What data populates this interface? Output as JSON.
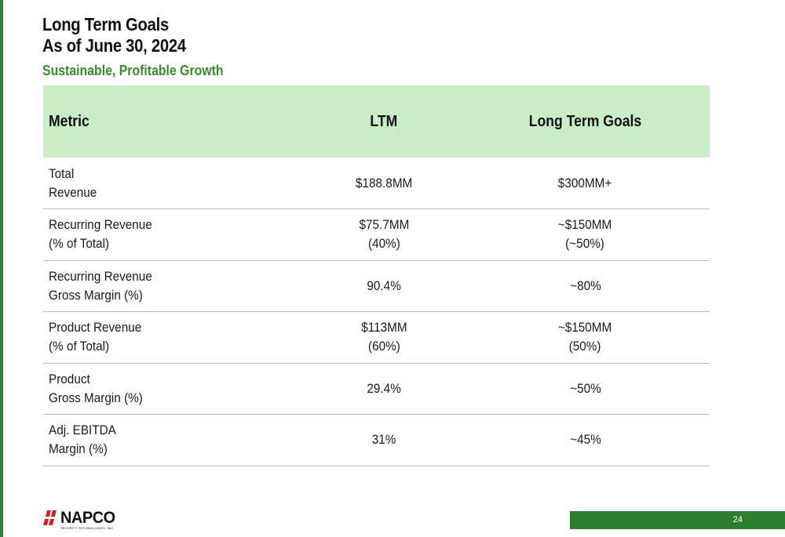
{
  "header": {
    "title_line1": "Long Term Goals",
    "title_line2": "As of June 30, 2024",
    "subtitle": "Sustainable, Profitable Growth"
  },
  "table": {
    "columns": [
      "Metric",
      "LTM",
      "Long Term Goals"
    ],
    "rows": [
      {
        "metric": [
          "Total",
          "Revenue"
        ],
        "ltm": [
          "$188.8MM"
        ],
        "goal": [
          "$300MM+"
        ]
      },
      {
        "metric": [
          "Recurring Revenue",
          "(% of Total)"
        ],
        "ltm": [
          "$75.7MM",
          "(40%)"
        ],
        "goal": [
          "~$150MM",
          "(~50%)"
        ]
      },
      {
        "metric": [
          "Recurring Revenue",
          "Gross Margin (%)"
        ],
        "ltm": [
          "90.4%"
        ],
        "goal": [
          "~80%"
        ]
      },
      {
        "metric": [
          "Product Revenue",
          "(% of Total)"
        ],
        "ltm": [
          "$113MM",
          "(60%)"
        ],
        "goal": [
          "~$150MM",
          "(50%)"
        ]
      },
      {
        "metric": [
          "Product",
          "Gross Margin (%)"
        ],
        "ltm": [
          "29.4%"
        ],
        "goal": [
          "~50%"
        ]
      },
      {
        "metric": [
          "Adj. EBITDA",
          "Margin (%)"
        ],
        "ltm": [
          "31%"
        ],
        "goal": [
          "~45%"
        ]
      }
    ]
  },
  "footer": {
    "logo_word": "NAPCO",
    "logo_tagline": "SECURITY TECHNOLOGIES, INC.",
    "page_number": "24"
  },
  "colors": {
    "accent_green": "#2e7d32",
    "subtitle_green": "#3a8a2e",
    "header_row_bg": "#caedc8",
    "logo_red": "#d32027"
  }
}
